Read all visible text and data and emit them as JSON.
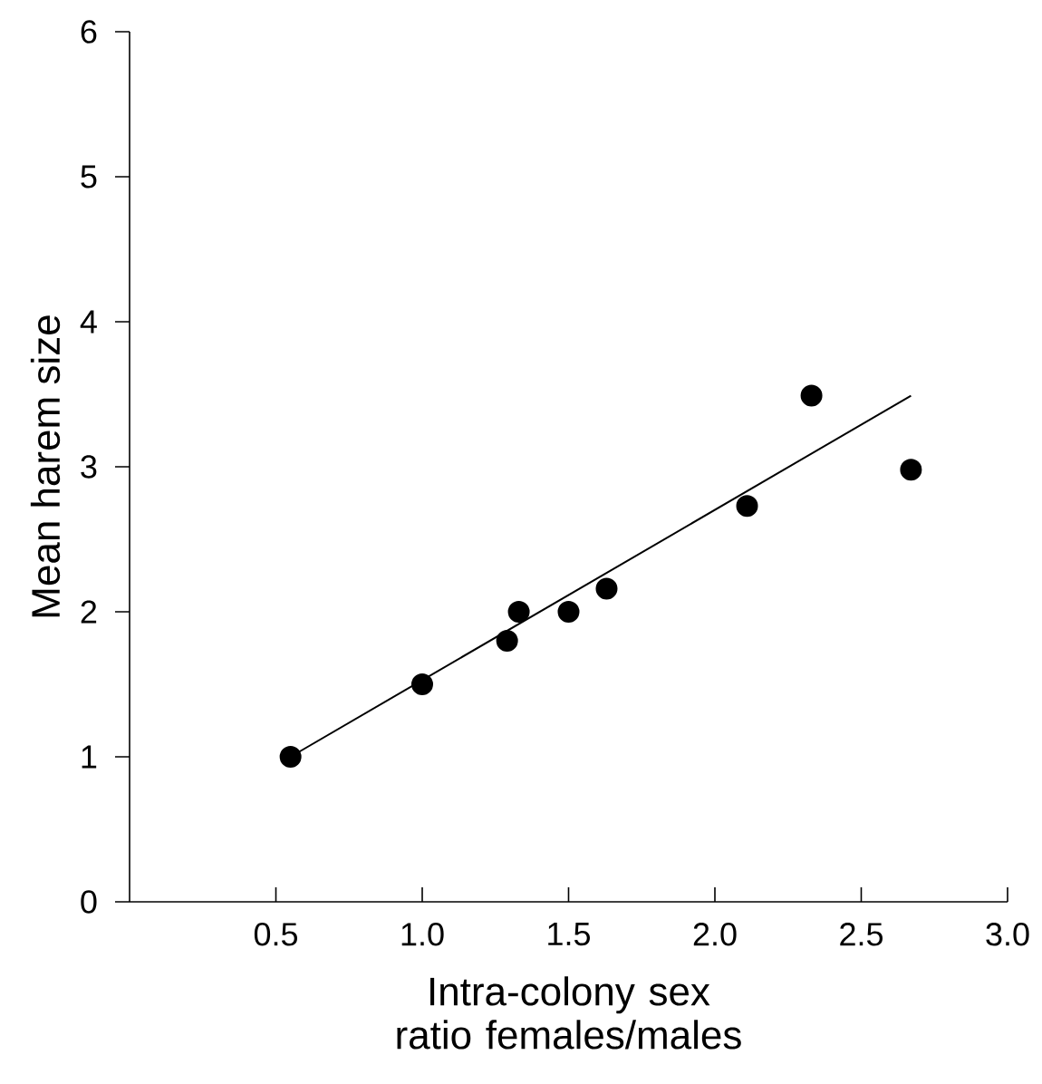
{
  "chart_data": {
    "type": "scatter",
    "xlabel": "Intra-colony sex ratio females/males",
    "ylabel": "Mean harem size",
    "xlim": [
      0,
      3
    ],
    "ylim": [
      0,
      6
    ],
    "xticks": [
      0.5,
      {
        "value": 1,
        "label": "1.0"
      },
      1.5,
      {
        "value": 2,
        "label": "2.0"
      },
      2.5,
      {
        "value": 3,
        "label": "3.0"
      }
    ],
    "yticks": [
      0,
      1,
      2,
      3,
      4,
      5,
      6
    ],
    "marker": "circle",
    "series": [
      {
        "color": "#000000",
        "x": [
          0.55,
          1.0,
          1.29,
          1.33,
          1.5,
          1.63,
          2.11,
          2.33,
          2.67
        ],
        "values": [
          1.0,
          1.5,
          1.8,
          2.0,
          2.0,
          2.16,
          2.73,
          3.49,
          2.98
        ]
      },
      {
        "type": "line",
        "color": "#000000",
        "marker": "none",
        "x": [
          0.55,
          2.67
        ],
        "values": [
          1.0,
          3.49
        ]
      }
    ]
  }
}
